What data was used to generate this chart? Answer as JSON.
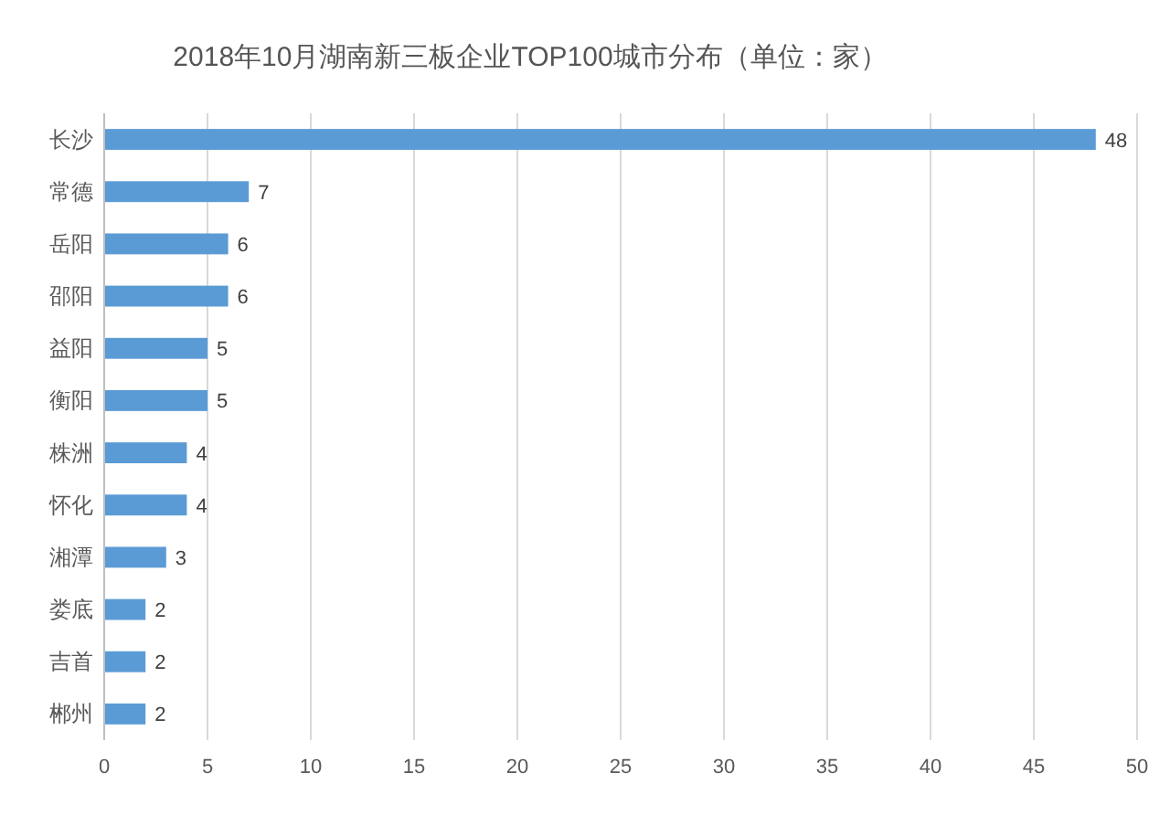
{
  "chart_data": {
    "type": "bar",
    "orientation": "horizontal",
    "title": "2018年10月湖南新三板企业TOP100城市分布（单位：家）",
    "categories": [
      "长沙",
      "常德",
      "岳阳",
      "邵阳",
      "益阳",
      "衡阳",
      "株洲",
      "怀化",
      "湘潭",
      "娄底",
      "吉首",
      "郴州"
    ],
    "values": [
      48,
      7,
      6,
      6,
      5,
      5,
      4,
      4,
      3,
      2,
      2,
      2
    ],
    "color": "#5b9bd5",
    "xlim": [
      0,
      50
    ],
    "xticks": [
      0,
      5,
      10,
      15,
      20,
      25,
      30,
      35,
      40,
      45,
      50
    ],
    "grid": "x",
    "data_labels": true
  }
}
